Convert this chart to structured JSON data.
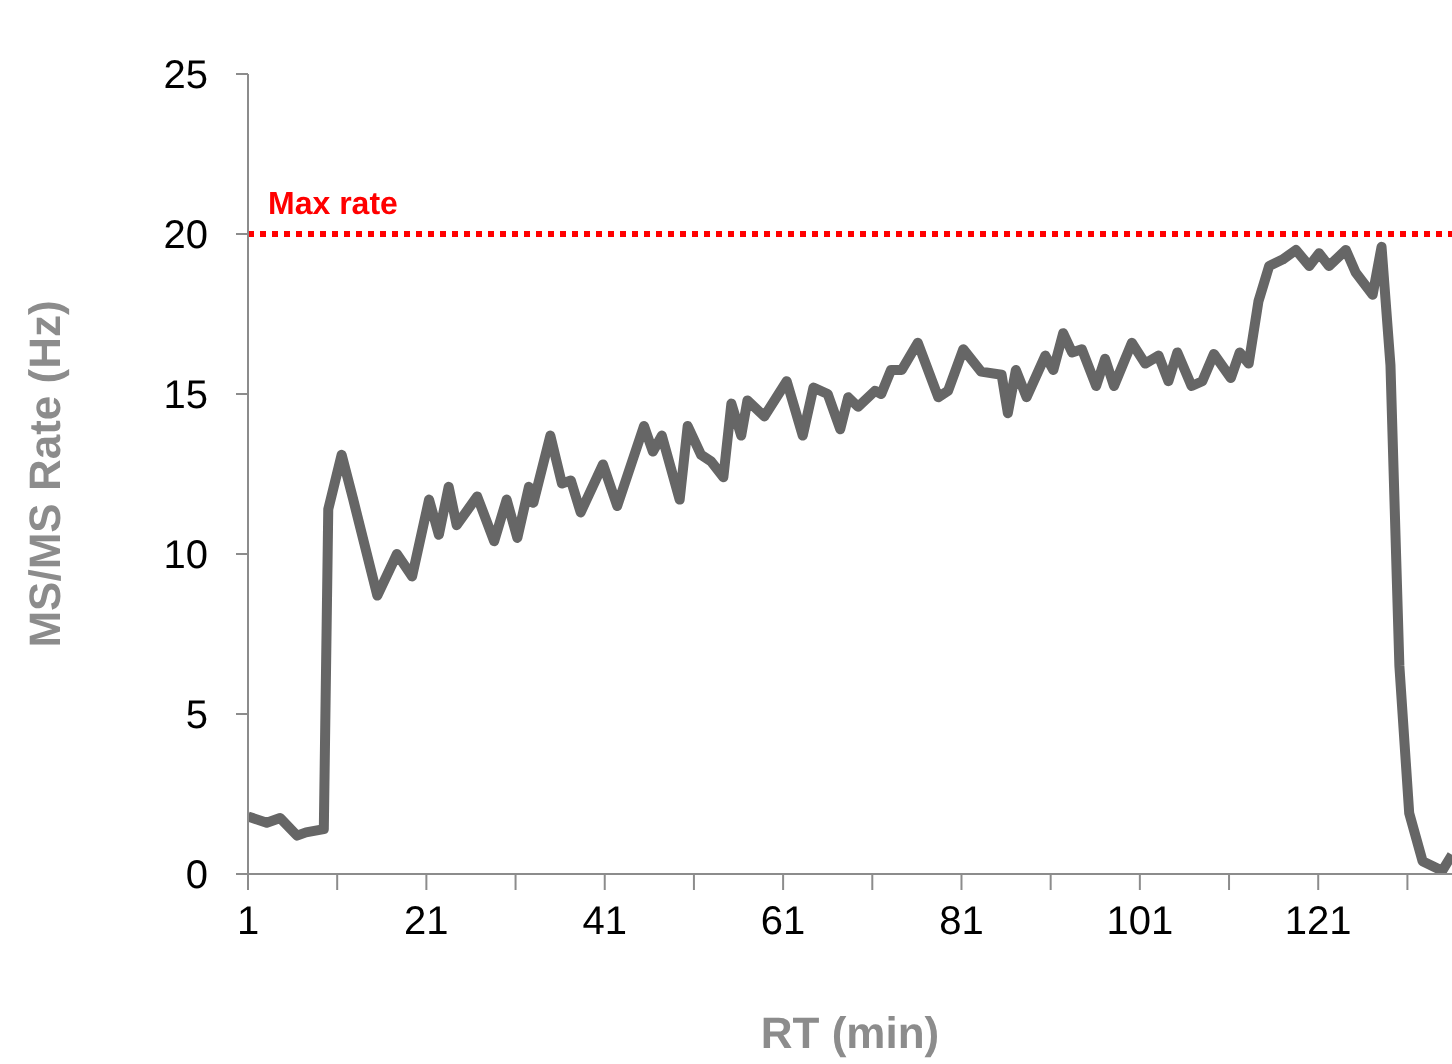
{
  "chart_data": {
    "type": "line",
    "xlabel": "RT (min)",
    "ylabel": "MS/MS Rate (Hz)",
    "xlim": [
      1,
      136
    ],
    "xticks": [
      1,
      {
        "value": 11,
        "label": null
      },
      21,
      {
        "value": 31,
        "label": null
      },
      41,
      {
        "value": 51,
        "label": null
      },
      61,
      {
        "value": 71,
        "label": null
      },
      81,
      {
        "value": 91,
        "label": null
      },
      101,
      {
        "value": 111,
        "label": null
      },
      121,
      {
        "value": 131,
        "label": null
      }
    ],
    "ylim": [
      0,
      25
    ],
    "yticks": [
      0,
      5,
      10,
      15,
      20,
      25
    ],
    "grid": false,
    "legend": false,
    "marker": "none",
    "line_style": "solid",
    "ref_lines": [
      {
        "axis": "y",
        "value": 20,
        "label": "Max rate",
        "color": "#ff0000",
        "line_style": "dotted"
      }
    ],
    "series": [
      {
        "color": "#666666",
        "x": [
          1,
          3.1,
          4.6,
          6.5,
          7.5,
          9.5,
          10,
          11.5,
          12.8,
          15.5,
          17.7,
          19.4,
          21.3,
          22.4,
          23.5,
          24.4,
          26.7,
          28.6,
          30,
          31.2,
          32.5,
          33,
          34.9,
          36.2,
          37.2,
          38.3,
          40.8,
          42.4,
          45.4,
          46.4,
          47.4,
          49.4,
          50.3,
          51.8,
          52.9,
          54.3,
          55.2,
          56.3,
          57,
          58.9,
          61.4,
          63.2,
          64.4,
          66,
          67.4,
          68.3,
          69.4,
          71.3,
          72,
          73.1,
          74.3,
          76.1,
          78.4,
          79.5,
          81.2,
          83.2,
          85.5,
          86.2,
          87.1,
          88.3,
          90.4,
          91.3,
          92.4,
          93.4,
          94.5,
          96.1,
          97.1,
          98.1,
          100.1,
          101.6,
          103.1,
          104.2,
          105.2,
          106.8,
          108,
          109.3,
          111.2,
          112.2,
          113.2,
          114.3,
          115.5,
          117,
          118.5,
          120,
          121.1,
          122.2,
          124.1,
          125.2,
          127.1,
          128.1,
          129.1,
          130.1,
          131.2,
          132.7,
          134.9,
          136
        ],
        "values": [
          1.8,
          1.6,
          1.75,
          1.2,
          1.3,
          1.4,
          11.4,
          13.1,
          11.7,
          8.7,
          10,
          9.3,
          11.7,
          10.6,
          12.1,
          10.9,
          11.8,
          10.4,
          11.7,
          10.5,
          12.1,
          11.6,
          13.7,
          12.2,
          12.3,
          11.3,
          12.8,
          11.5,
          14,
          13.2,
          13.7,
          11.7,
          14,
          13.1,
          12.9,
          12.4,
          14.7,
          13.7,
          14.8,
          14.3,
          15.4,
          13.7,
          15.2,
          15,
          13.9,
          14.9,
          14.6,
          15.1,
          15,
          15.75,
          15.75,
          16.6,
          14.9,
          15.1,
          16.4,
          15.7,
          15.6,
          14.4,
          15.75,
          14.9,
          16.2,
          15.75,
          16.9,
          16.3,
          16.4,
          15.25,
          16.1,
          15.25,
          16.6,
          15.95,
          16.2,
          15.4,
          16.3,
          15.25,
          15.4,
          16.25,
          15.5,
          16.3,
          15.95,
          17.9,
          19,
          19.2,
          19.5,
          19,
          19.4,
          19,
          19.5,
          18.8,
          18.1,
          19.6,
          15.9,
          6.5,
          1.9,
          0.4,
          0.1,
          0.6
        ]
      }
    ]
  }
}
